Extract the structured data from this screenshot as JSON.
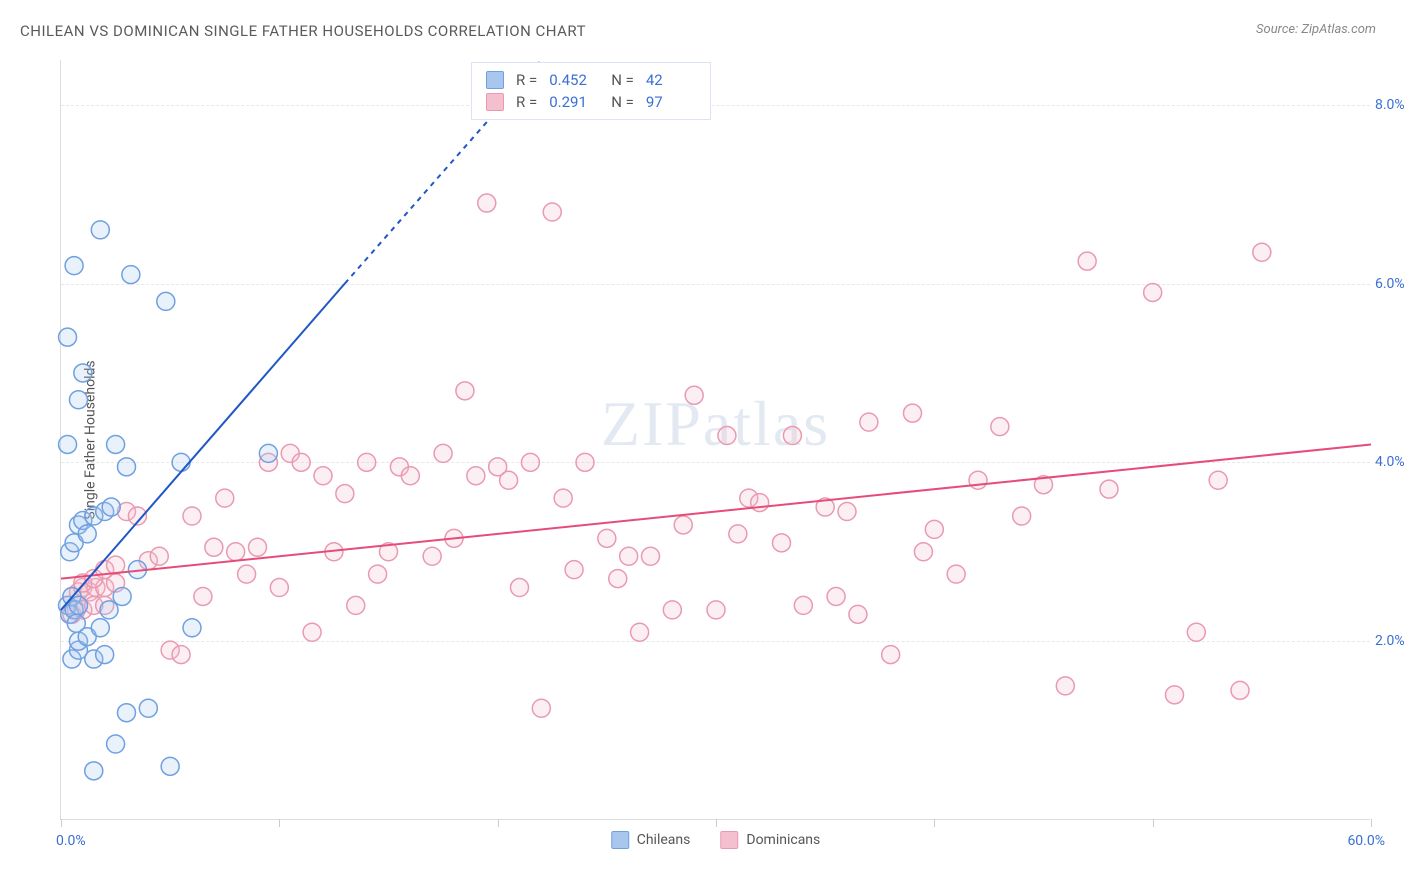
{
  "title": "CHILEAN VS DOMINICAN SINGLE FATHER HOUSEHOLDS CORRELATION CHART",
  "source": "Source: ZipAtlas.com",
  "watermark": "ZIPatlas",
  "ylabel": "Single Father Households",
  "chart": {
    "type": "scatter",
    "xlim": [
      0,
      60
    ],
    "ylim": [
      0,
      8.5
    ],
    "ytick_step": 2,
    "ytick_labels": [
      "2.0%",
      "4.0%",
      "6.0%",
      "8.0%"
    ],
    "xtick_positions": [
      0,
      10,
      20,
      30,
      40,
      50,
      60
    ],
    "xaxis_left_label": "0.0%",
    "xaxis_right_label": "60.0%",
    "background_color": "#ffffff",
    "grid_color": "#e8e8e8",
    "axis_color": "#dddddd",
    "tick_label_color": "#3b6fd4",
    "marker_radius": 9,
    "marker_stroke_width": 1.5,
    "marker_fill_opacity": 0.25,
    "trendline_width": 2
  },
  "series": {
    "chileans": {
      "label": "Chileans",
      "color_stroke": "#6fa0e0",
      "color_fill": "#a9c6ee",
      "trend_color": "#1f57c7",
      "R": "0.452",
      "N": "42",
      "trendline": {
        "x1": 0,
        "y1": 2.35,
        "x2": 13,
        "y2": 6.0
      },
      "trendline_dashed": {
        "x1": 13,
        "y1": 6.0,
        "x2": 22,
        "y2": 8.5
      },
      "points": [
        [
          0.3,
          2.4
        ],
        [
          0.4,
          2.3
        ],
        [
          0.5,
          2.5
        ],
        [
          0.6,
          2.35
        ],
        [
          0.7,
          2.2
        ],
        [
          0.8,
          2.4
        ],
        [
          0.4,
          3.0
        ],
        [
          0.6,
          3.1
        ],
        [
          0.8,
          3.3
        ],
        [
          1.0,
          3.35
        ],
        [
          1.2,
          3.2
        ],
        [
          1.5,
          3.4
        ],
        [
          2.0,
          3.45
        ],
        [
          2.3,
          3.5
        ],
        [
          0.5,
          1.8
        ],
        [
          0.8,
          1.9
        ],
        [
          1.5,
          1.8
        ],
        [
          2.0,
          1.85
        ],
        [
          0.8,
          2.0
        ],
        [
          1.2,
          2.05
        ],
        [
          1.8,
          2.15
        ],
        [
          2.2,
          2.35
        ],
        [
          2.8,
          2.5
        ],
        [
          3.5,
          2.8
        ],
        [
          0.3,
          5.4
        ],
        [
          0.6,
          6.2
        ],
        [
          1.0,
          5.0
        ],
        [
          1.8,
          6.6
        ],
        [
          3.2,
          6.1
        ],
        [
          4.8,
          5.8
        ],
        [
          2.5,
          4.2
        ],
        [
          3.0,
          3.95
        ],
        [
          5.5,
          4.0
        ],
        [
          9.5,
          4.1
        ],
        [
          6.0,
          2.15
        ],
        [
          3.0,
          1.2
        ],
        [
          4.0,
          1.25
        ],
        [
          2.5,
          0.85
        ],
        [
          5.0,
          0.6
        ],
        [
          1.5,
          0.55
        ],
        [
          0.3,
          4.2
        ],
        [
          0.8,
          4.7
        ]
      ]
    },
    "dominicans": {
      "label": "Dominicans",
      "color_stroke": "#e99ab0",
      "color_fill": "#f4c0cf",
      "trend_color": "#e54c7a",
      "R": "0.291",
      "N": "97",
      "trendline": {
        "x1": 0,
        "y1": 2.7,
        "x2": 60,
        "y2": 4.2
      },
      "points": [
        [
          0.5,
          2.5
        ],
        [
          0.8,
          2.55
        ],
        [
          1.0,
          2.6
        ],
        [
          1.3,
          2.55
        ],
        [
          1.6,
          2.6
        ],
        [
          2.0,
          2.6
        ],
        [
          2.5,
          2.65
        ],
        [
          0.5,
          2.3
        ],
        [
          0.7,
          2.35
        ],
        [
          1.0,
          2.35
        ],
        [
          1.5,
          2.4
        ],
        [
          2.0,
          2.4
        ],
        [
          1.0,
          2.65
        ],
        [
          1.5,
          2.7
        ],
        [
          2.0,
          2.8
        ],
        [
          2.5,
          2.85
        ],
        [
          3.0,
          3.45
        ],
        [
          3.5,
          3.4
        ],
        [
          4.0,
          2.9
        ],
        [
          4.5,
          2.95
        ],
        [
          5.0,
          1.9
        ],
        [
          5.5,
          1.85
        ],
        [
          6.0,
          3.4
        ],
        [
          6.5,
          2.5
        ],
        [
          7.0,
          3.05
        ],
        [
          7.5,
          3.6
        ],
        [
          8.0,
          3.0
        ],
        [
          8.5,
          2.75
        ],
        [
          9.0,
          3.05
        ],
        [
          9.5,
          4.0
        ],
        [
          10.0,
          2.6
        ],
        [
          10.5,
          4.1
        ],
        [
          11.0,
          4.0
        ],
        [
          11.5,
          2.1
        ],
        [
          12.0,
          3.85
        ],
        [
          12.5,
          3.0
        ],
        [
          13.0,
          3.65
        ],
        [
          13.5,
          2.4
        ],
        [
          14.0,
          4.0
        ],
        [
          14.5,
          2.75
        ],
        [
          15.0,
          3.0
        ],
        [
          15.5,
          3.95
        ],
        [
          16.0,
          3.85
        ],
        [
          17.0,
          2.95
        ],
        [
          17.5,
          4.1
        ],
        [
          18.0,
          3.15
        ],
        [
          18.5,
          4.8
        ],
        [
          19.0,
          3.85
        ],
        [
          19.5,
          6.9
        ],
        [
          20.0,
          3.95
        ],
        [
          20.5,
          3.8
        ],
        [
          21.0,
          2.6
        ],
        [
          21.5,
          4.0
        ],
        [
          22.0,
          1.25
        ],
        [
          22.5,
          6.8
        ],
        [
          23.0,
          3.6
        ],
        [
          23.5,
          2.8
        ],
        [
          24.0,
          4.0
        ],
        [
          25.0,
          3.15
        ],
        [
          25.5,
          2.7
        ],
        [
          26.0,
          2.95
        ],
        [
          26.5,
          2.1
        ],
        [
          27.0,
          2.95
        ],
        [
          28.0,
          2.35
        ],
        [
          28.5,
          3.3
        ],
        [
          29.0,
          4.75
        ],
        [
          30.0,
          2.35
        ],
        [
          30.5,
          4.3
        ],
        [
          31.0,
          3.2
        ],
        [
          31.5,
          3.6
        ],
        [
          32.0,
          3.55
        ],
        [
          33.0,
          3.1
        ],
        [
          33.5,
          4.3
        ],
        [
          34.0,
          2.4
        ],
        [
          35.0,
          3.5
        ],
        [
          35.5,
          2.5
        ],
        [
          36.0,
          3.45
        ],
        [
          36.5,
          2.3
        ],
        [
          37.0,
          4.45
        ],
        [
          38.0,
          1.85
        ],
        [
          39.0,
          4.55
        ],
        [
          39.5,
          3.0
        ],
        [
          40.0,
          3.25
        ],
        [
          41.0,
          2.75
        ],
        [
          42.0,
          3.8
        ],
        [
          43.0,
          4.4
        ],
        [
          44.0,
          3.4
        ],
        [
          45.0,
          3.75
        ],
        [
          46.0,
          1.5
        ],
        [
          47.0,
          6.25
        ],
        [
          48.0,
          3.7
        ],
        [
          50.0,
          5.9
        ],
        [
          51.0,
          1.4
        ],
        [
          52.0,
          2.1
        ],
        [
          54.0,
          1.45
        ],
        [
          55.0,
          6.35
        ],
        [
          53.0,
          3.8
        ]
      ]
    }
  },
  "legend_stats_labels": {
    "R": "R =",
    "N": "N ="
  },
  "bottom_legend": {
    "s1": "Chileans",
    "s2": "Dominicans"
  }
}
